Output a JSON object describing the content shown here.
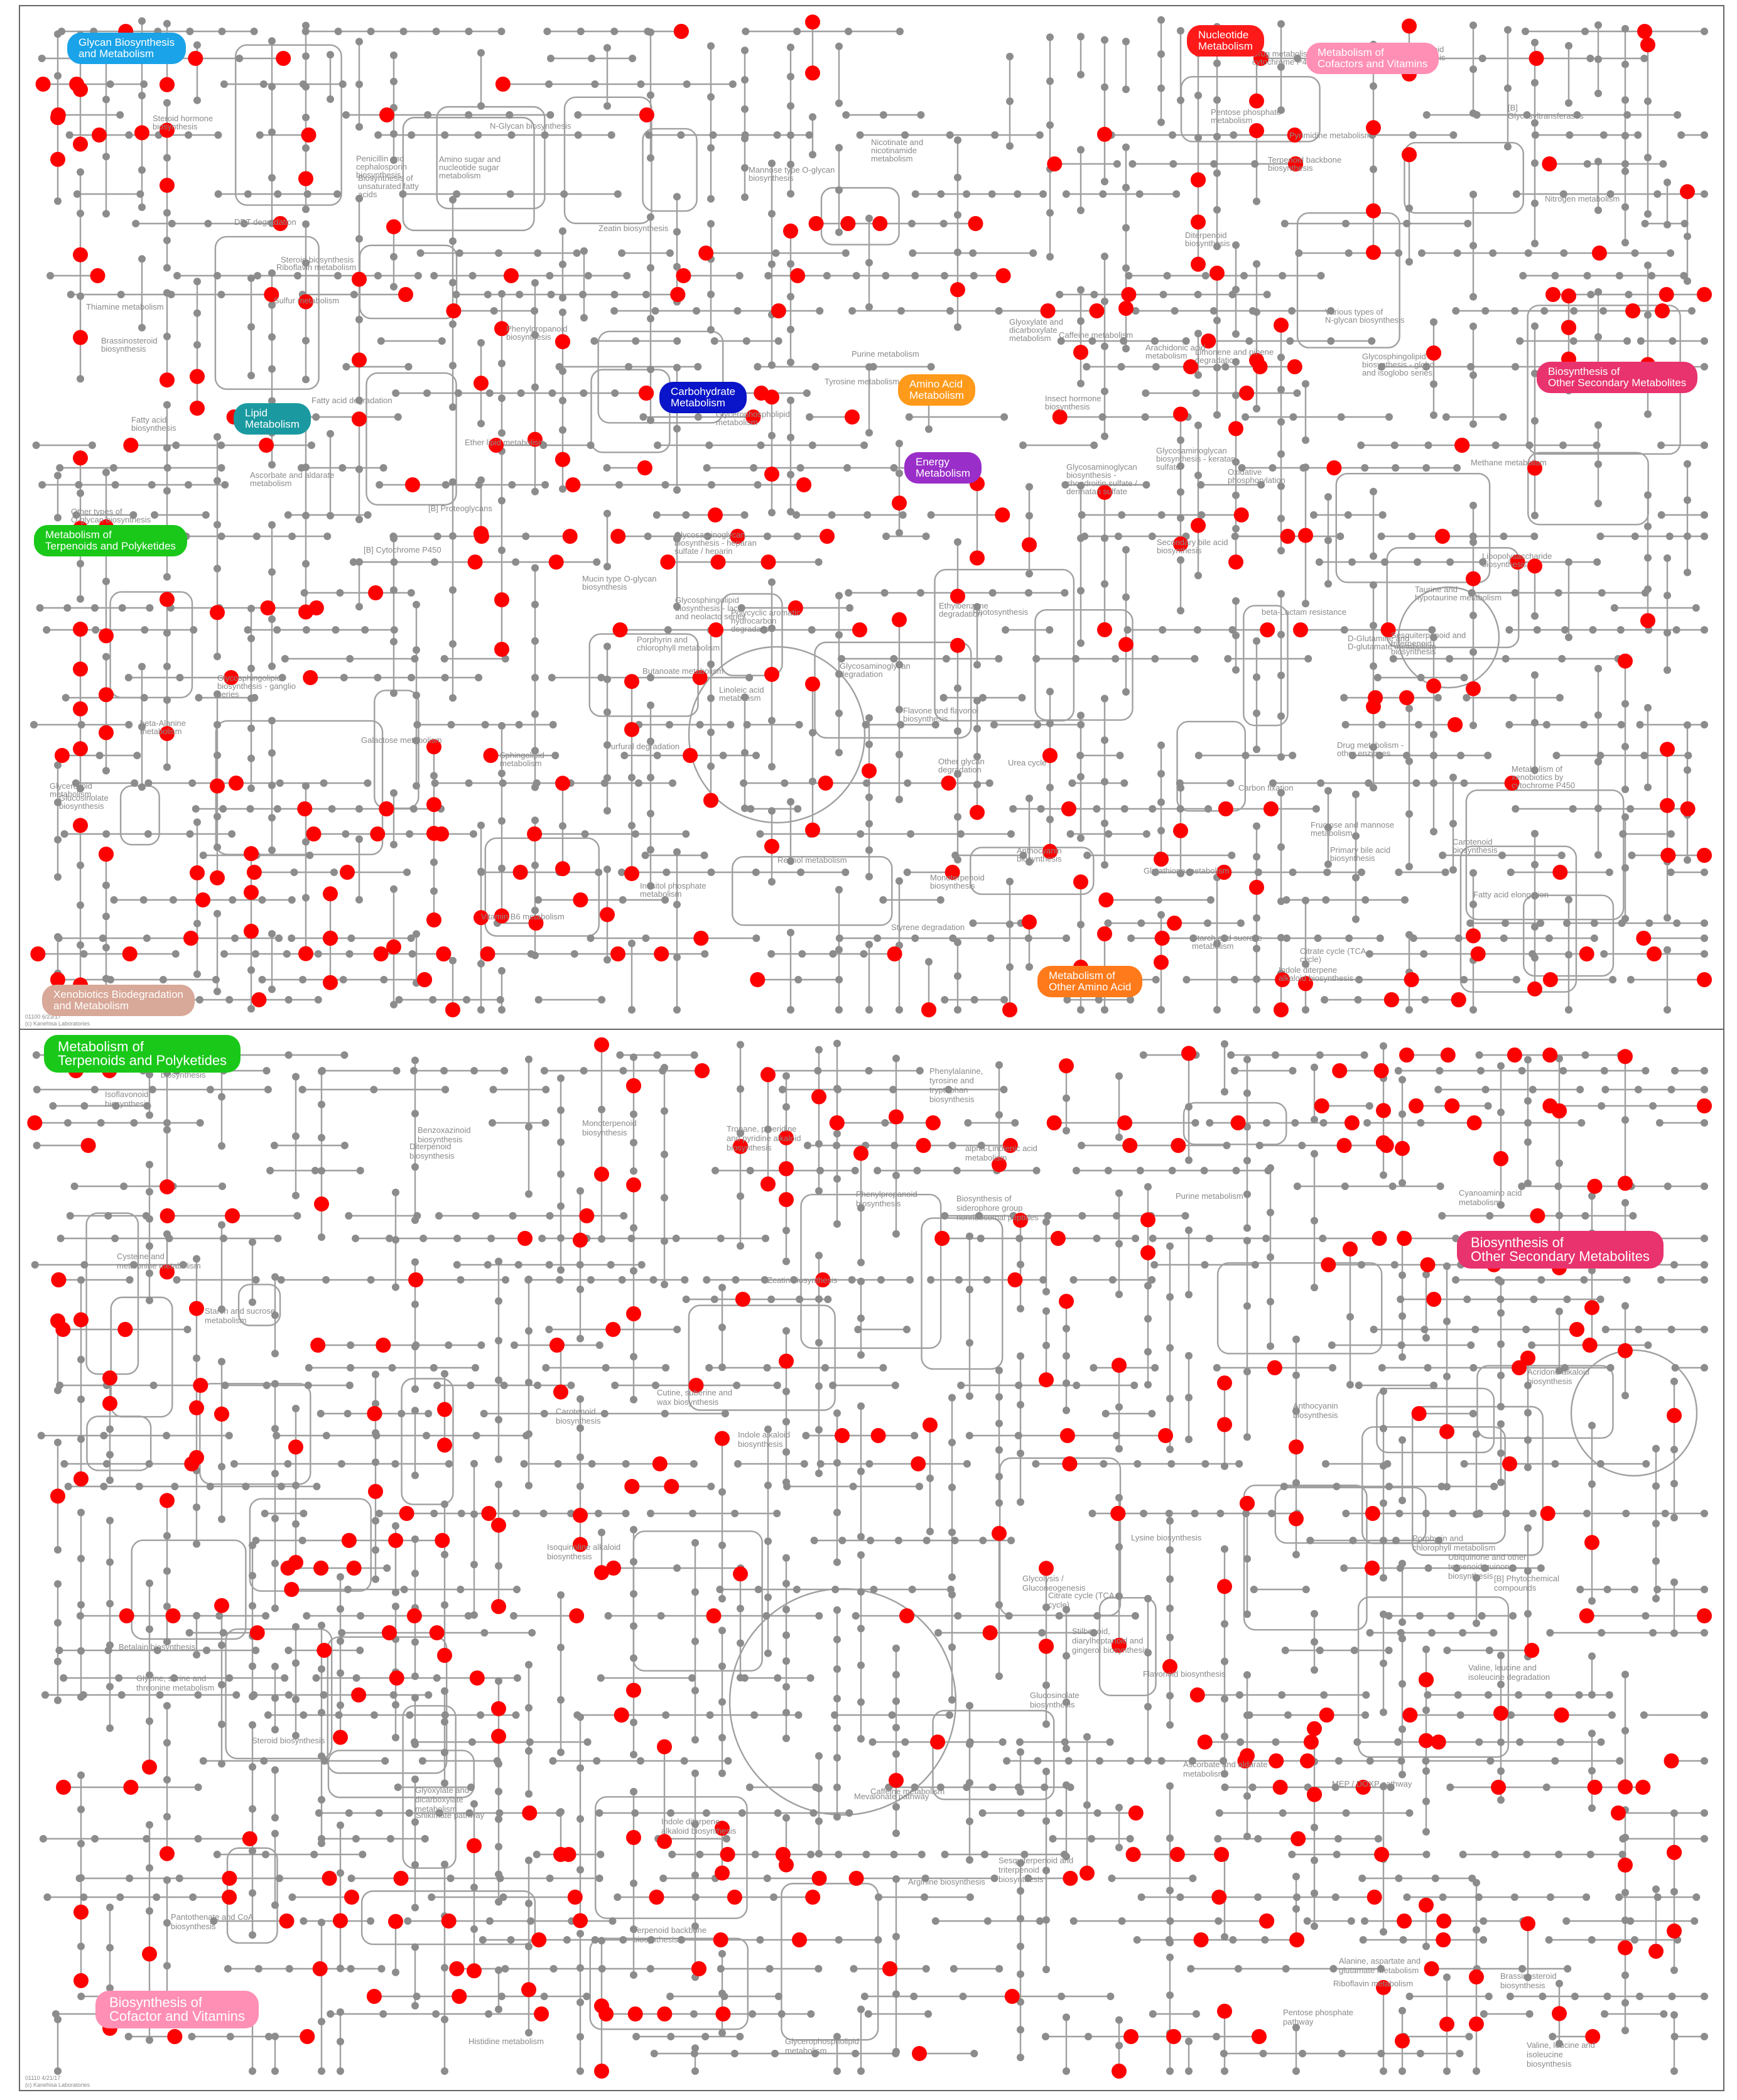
{
  "top": {
    "categories": [
      {
        "text": "Glycan Biosynthesis\nand Metabolism",
        "color": "#1aa3e8"
      },
      {
        "text": "Nucleotide\nMetabolism",
        "color": "#ff1a1a"
      },
      {
        "text": "Metabolism of\nCofactors and Vitamins",
        "color": "#ff8fb4"
      },
      {
        "text": "Carbohydrate\nMetabolism",
        "color": "#0a14c8"
      },
      {
        "text": "Amino Acid\nMetabolism",
        "color": "#ff9a1a"
      },
      {
        "text": "Energy\nMetabolism",
        "color": "#9a2ec8"
      },
      {
        "text": "Lipid\nMetabolism",
        "color": "#1a9aa0"
      },
      {
        "text": "Biosynthesis of\nOther Secondary Metabolites",
        "color": "#e8336e"
      },
      {
        "text": "Metabolism of\nTerpenoids and Polyketides",
        "color": "#1ac81a"
      },
      {
        "text": "Metabolism of\nOther Amino Acid",
        "color": "#ff7a1a"
      },
      {
        "text": "Xenobiotics Biodegradation\nand Metabolism",
        "color": "#d8a898"
      }
    ],
    "labels": [
      "Glycosphingolipid biosynthesis - globo and isoglobo series",
      "Other types of O-glycan biosynthesis",
      "Various types of N-glycan biosynthesis",
      "Mucin type O-glycan biosynthesis",
      "Mannose type O-glycan biosynthesis",
      "Lipopolysaccharide biosynthesis",
      "Glycosphingolipid biosynthesis - lacto and neolacto series",
      "N-Glycan biosynthesis",
      "[B] Glycosyltransferases",
      "Other glycan degradation",
      "Glycosphingolipid biosynthesis - ganglio series",
      "Glycosaminoglycan biosynthesis - keratan sulfate",
      "Glycosaminoglycan degradation",
      "[B] Proteoglycans",
      "Glycosaminoglycan biosynthesis - heparan sulfate / heparin",
      "Glycosaminoglycan biosynthesis - chondroitin sulfate / dermatan sulfate",
      "Starch and sucrose metabolism",
      "Galactose metabolism",
      "Inositol phosphate metabolism",
      "Amino sugar and nucleotide sugar metabolism",
      "Pentose phosphate metabolism",
      "Fructose and mannose metabolism",
      "Purine metabolism",
      "Pyrimidine metabolism",
      "Ascorbate and aldarate metabolism",
      "Thiamine metabolism",
      "Vitamin B6 metabolism",
      "Riboflavin metabolism",
      "Caffeine metabolism",
      "beta-Alanine metabolism",
      "Tyrosine metabolism",
      "Phenylpropanoid biosynthesis",
      "Isoflavonoid biosynthesis",
      "Flavone and flavonol biosynthesis",
      "Anthocyanin biosynthesis",
      "Linoleic acid metabolism",
      "Retinol metabolism",
      "Carotenoid biosynthesis",
      "Arachidonic acid metabolism",
      "Biosynthesis of unsaturated fatty acids",
      "Glycerophospholipid metabolism",
      "Glycerolipid metabolism",
      "Ether lipid metabolism",
      "Sphingolipid metabolism",
      "Fatty acid biosynthesis",
      "Fatty acid degradation",
      "Fatty acid elongation",
      "Butanoate metabolism",
      "Limonene and pinene degradation",
      "Monoterpenoid biosynthesis",
      "Sesquiterpenoid and triterpenoid biosynthesis",
      "Zeatin biosynthesis",
      "Insect hormone biosynthesis",
      "Terpenoid backbone biosynthesis",
      "Steroid biosynthesis",
      "Primary bile acid biosynthesis",
      "Steroid hormone biosynthesis",
      "Indole diterpene alkaloid biosynthesis",
      "Diterpenoid biosynthesis",
      "Brassinosteroid biosynthesis",
      "Secondary bile acid biosynthesis",
      "[B] Cytochrome P450",
      "Polycyclic aromatic hydrocarbon degradation",
      "Metabolism of xenobiotics by cytochrome P450",
      "Drug metabolism - cytochrome P450",
      "Drug metabolism - other enzymes",
      "Glyoxylate and dicarboxylate metabolism",
      "Citrate cycle (TCA cycle)",
      "Oxidative phosphorylation",
      "Urea cycle",
      "Glutathione metabolism",
      "Taurine and hypotaurine metabolism",
      "Penicillin and cephalosporin biosynthesis",
      "beta-Lactam resistance",
      "Styrene degradation",
      "Ethylbenzene degradation",
      "DDT degradation",
      "Furfural degradation",
      "Nicotinate and nicotinamide metabolism",
      "D-Glutamine and D-glutamate metabolism",
      "Porphyrin and chlorophyll metabolism",
      "Glucosinolate biosynthesis",
      "Photosynthesis",
      "Methane metabolism",
      "Carbon fixation",
      "Sulfur metabolism",
      "Nitrogen metabolism"
    ],
    "footer": "01100 6/23/17\n(c) Kanehisa Laboratories"
  },
  "bottom": {
    "categories": [
      {
        "text": "Metabolism of\nTerpenoids and Polyketides",
        "color": "#1ac81a"
      },
      {
        "text": "Biosynthesis of\nOther Secondary Metabolites",
        "color": "#e8336e"
      },
      {
        "text": "Biosynthesis of\nCofactor and Vitamins",
        "color": "#ff8fb4"
      }
    ],
    "labels": [
      "Starch and sucrose metabolism",
      "Pentose phosphate pathway",
      "Benzoxazinoid biosynthesis",
      "Purine metabolism",
      "Caffeine metabolism",
      "Monoterpenoid biosynthesis",
      "Glycerophospholipid metabolism",
      "Indole diterpene alkaloid biosynthesis",
      "Riboflavin metabolism",
      "Ascorbate and aldarate metabolism",
      "Glycolysis / Gluconeogenesis",
      "Betalain biosynthesis",
      "[B] Phytochemical compounds",
      "Zeatin biosynthesis",
      "Acridone alkaloid biosynthesis",
      "MEP / DOXP pathway",
      "Isoquinoline alkaloid biosynthesis",
      "Indole alkaloid biosynthesis",
      "alpha-Linolenic acid metabolism",
      "Sesquiterpenoid and triterpenoid biosynthesis",
      "Terpenoid backbone biosynthesis",
      "Cutine, suberine and wax biosynthesis",
      "Phenylalanine, tyrosine and tryptophan biosynthesis",
      "Shikimate pathway",
      "Biosynthesis of siderophore group nonribosomal peptides",
      "Mevalonate pathway",
      "Stilbenoid, diarylheptanoid and gingerol biosynthesis",
      "Steroid biosynthesis",
      "Phenylpropanoid biosynthesis",
      "Arginine biosynthesis",
      "Isoflavonoid biosynthesis",
      "Glyoxylate and dicarboxylate metabolism",
      "Citrate cycle (TCA cycle)",
      "Glycine, serine and threonine metabolism",
      "Lysine biosynthesis",
      "Diterpenoid biosynthesis",
      "Brassinosteroid biosynthesis",
      "Cysteine and methionine metabolism",
      "Anthocyanin biosynthesis",
      "Flavone and flavonol biosynthesis",
      "Carotenoid biosynthesis",
      "Valine, leucine and isoleucine biosynthesis",
      "Flavonoid biosynthesis",
      "Alanine, aspartate and glutamate metabolism",
      "Valine, leucine and isoleucine degradation",
      "Cyanoamino acid metabolism",
      "Porphyrin and chlorophyll metabolism",
      "Ubiquinone and other terpenoid-quinone biosynthesis",
      "Pantothenate and CoA biosynthesis",
      "Histidine metabolism",
      "Glucosinolate biosynthesis",
      "Tropane, piperidine and pyridine alkaloid biosynthesis"
    ],
    "footer": "01110 4/21/17\n(c) Kanehisa Laboratories"
  },
  "style": {
    "line_color": "#a0a0a0",
    "node_color": "#8c8c8c",
    "highlight_color": "#ff0000"
  }
}
